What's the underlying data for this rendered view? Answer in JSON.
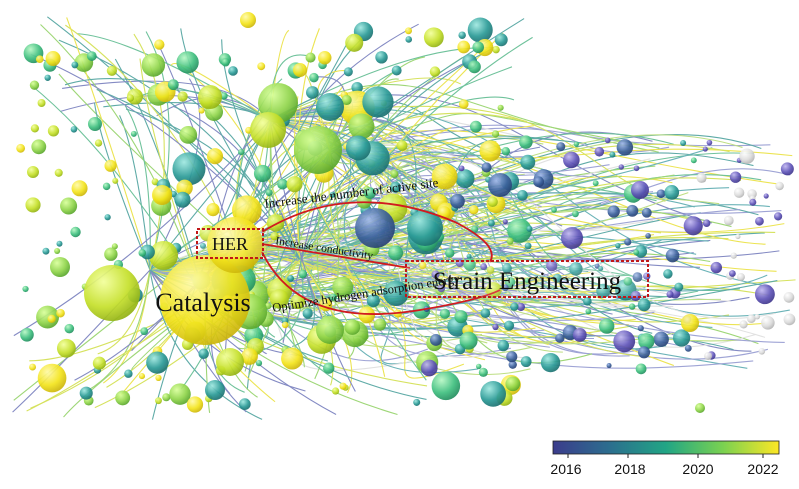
{
  "labels": {
    "catalysis": "Catalysis",
    "her": "HER",
    "strain": "Strain Engineering",
    "rel_active": "Increase the number of active site",
    "rel_conductivity": "Increase conductivity",
    "rel_hydrogen": "Optimize hydrogen adsorption energy"
  },
  "colorbar": {
    "ticks": [
      "2016",
      "2018",
      "2020",
      "2022"
    ],
    "colors": [
      "#3b3c8c",
      "#2c6e8e",
      "#21a585",
      "#79d151",
      "#fde725"
    ]
  },
  "colors": {
    "highlight_box": "#c0181a",
    "relation_line": "#d11a1f"
  }
}
